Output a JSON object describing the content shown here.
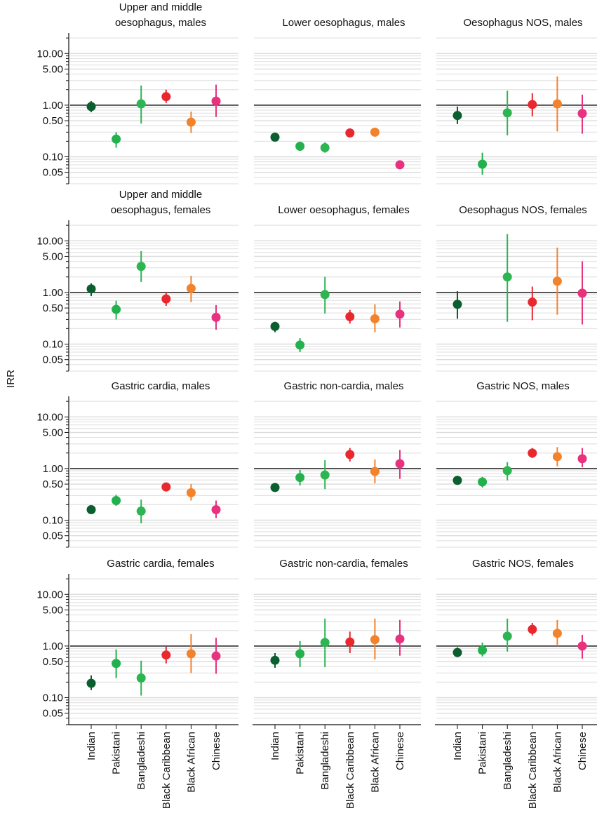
{
  "chart_data": {
    "type": "errorbar",
    "ylabel": "IRR",
    "log": true,
    "grid": true,
    "refline": 1,
    "categories": [
      "Indian",
      "Pakistani",
      "Bangladeshi",
      "Black Caribbean",
      "Black African",
      "Chinese"
    ],
    "colors": [
      "#0b5e2e",
      "#22b14c",
      "#2db552",
      "#e8282e",
      "#f2822b",
      "#e8327f"
    ],
    "ylim": [
      0.03,
      25
    ],
    "yticks": [
      0.05,
      {
        "value": 0.1,
        "label": "0.10"
      },
      {
        "value": 0.5,
        "label": "0.50"
      },
      {
        "value": 1,
        "label": "1.00"
      },
      {
        "value": 5,
        "label": "5.00"
      },
      {
        "value": 10,
        "label": "10.00"
      }
    ],
    "minor_yticks": [
      0.03,
      0.04,
      0.06,
      0.07,
      0.08,
      0.09,
      0.2,
      0.3,
      0.4,
      0.6,
      0.7,
      0.8,
      0.9,
      2,
      3,
      4,
      6,
      7,
      8,
      9,
      20
    ],
    "panels": [
      {
        "title": [
          "Upper and middle",
          "oesophagus, males"
        ],
        "values": [
          0.94,
          0.22,
          1.06,
          1.46,
          0.47,
          1.2
        ],
        "lower": [
          0.73,
          0.15,
          0.44,
          1.1,
          0.29,
          0.59
        ],
        "upper": [
          1.2,
          0.3,
          2.4,
          2.0,
          0.75,
          2.5
        ]
      },
      {
        "title": [
          "Lower oesophagus, males"
        ],
        "values": [
          0.24,
          0.16,
          0.15,
          0.29,
          0.3,
          0.07
        ],
        "lower": [
          0.22,
          0.14,
          0.12,
          0.27,
          0.26,
          0.06
        ],
        "upper": [
          0.26,
          0.19,
          0.19,
          0.31,
          0.35,
          0.085
        ]
      },
      {
        "title": [
          "Oesophagus NOS, males"
        ],
        "values": [
          0.63,
          0.072,
          0.71,
          1.03,
          1.06,
          0.69
        ],
        "lower": [
          0.43,
          0.045,
          0.26,
          0.61,
          0.31,
          0.28
        ],
        "upper": [
          0.94,
          0.12,
          1.9,
          1.7,
          3.6,
          1.6
        ]
      },
      {
        "title": [
          "Upper and middle",
          "oesophagus, females"
        ],
        "values": [
          1.17,
          0.47,
          3.2,
          0.75,
          1.2,
          0.33
        ],
        "lower": [
          0.85,
          0.3,
          1.6,
          0.55,
          0.65,
          0.19
        ],
        "upper": [
          1.5,
          0.69,
          6.3,
          1.0,
          2.1,
          0.57
        ]
      },
      {
        "title": [
          "Lower oesophagus, females"
        ],
        "values": [
          0.22,
          0.096,
          0.91,
          0.34,
          0.31,
          0.38
        ],
        "lower": [
          0.17,
          0.07,
          0.39,
          0.25,
          0.17,
          0.21
        ],
        "upper": [
          0.27,
          0.13,
          2.0,
          0.46,
          0.59,
          0.67
        ]
      },
      {
        "title": [
          "Oesophagus NOS, females"
        ],
        "values": [
          0.59,
          null,
          2.0,
          0.65,
          1.65,
          0.97
        ],
        "lower": [
          0.31,
          null,
          0.27,
          0.29,
          0.37,
          0.24
        ],
        "upper": [
          1.06,
          null,
          13.5,
          1.3,
          7.4,
          4.0
        ]
      },
      {
        "title": [
          "Gastric cardia, males"
        ],
        "values": [
          0.16,
          0.24,
          0.15,
          0.44,
          0.34,
          0.16
        ],
        "lower": [
          0.14,
          0.19,
          0.087,
          0.37,
          0.24,
          0.11
        ],
        "upper": [
          0.18,
          0.31,
          0.25,
          0.53,
          0.5,
          0.24
        ]
      },
      {
        "title": [
          "Gastric non-cardia, males"
        ],
        "values": [
          0.43,
          0.67,
          0.75,
          1.87,
          0.88,
          1.24
        ],
        "lower": [
          0.36,
          0.47,
          0.4,
          1.37,
          0.52,
          0.63
        ],
        "upper": [
          0.52,
          0.94,
          1.45,
          2.5,
          1.5,
          2.3
        ]
      },
      {
        "title": [
          "Gastric NOS, males"
        ],
        "values": [
          0.59,
          0.55,
          0.91,
          1.99,
          1.7,
          1.55
        ],
        "lower": [
          0.53,
          0.43,
          0.59,
          1.6,
          1.1,
          1.06
        ],
        "upper": [
          0.65,
          0.69,
          1.33,
          2.5,
          2.6,
          2.5
        ]
      },
      {
        "title": [
          "Gastric cardia, females"
        ],
        "values": [
          0.19,
          0.46,
          0.24,
          0.67,
          0.71,
          0.64
        ],
        "lower": [
          0.14,
          0.24,
          0.11,
          0.46,
          0.3,
          0.29
        ],
        "upper": [
          0.27,
          0.86,
          0.52,
          0.97,
          1.7,
          1.45
        ]
      },
      {
        "title": [
          "Gastric non-cardia, females"
        ],
        "values": [
          0.53,
          0.71,
          1.17,
          1.2,
          1.33,
          1.37
        ],
        "lower": [
          0.38,
          0.39,
          0.39,
          0.73,
          0.55,
          0.65
        ],
        "upper": [
          0.73,
          1.25,
          3.4,
          1.9,
          3.4,
          3.2
        ]
      },
      {
        "title": [
          "Gastric NOS, females"
        ],
        "values": [
          0.75,
          0.83,
          1.55,
          2.1,
          1.76,
          1.0
        ],
        "lower": [
          0.61,
          0.63,
          0.78,
          1.6,
          1.0,
          0.57
        ],
        "upper": [
          0.94,
          1.17,
          3.4,
          2.8,
          3.2,
          1.65
        ]
      }
    ]
  }
}
